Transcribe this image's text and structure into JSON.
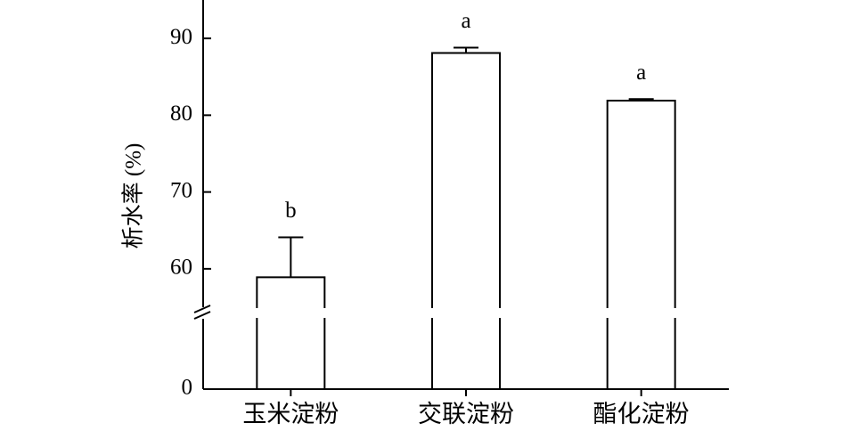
{
  "chart_data": {
    "type": "bar",
    "y_label": "析水率 (%)",
    "categories": [
      "玉米淀粉",
      "交联淀粉",
      "酯化淀粉"
    ],
    "values": [
      58.9,
      88.1,
      81.9
    ],
    "errors": [
      5.2,
      0.7,
      0.2
    ],
    "annotations": [
      "b",
      "a",
      "a"
    ],
    "color": "#ffffff",
    "ylim": [
      0,
      95
    ],
    "ybreak": [
      0,
      55
    ],
    "yticks": [
      0,
      60,
      70,
      80,
      90
    ],
    "grid": false
  }
}
